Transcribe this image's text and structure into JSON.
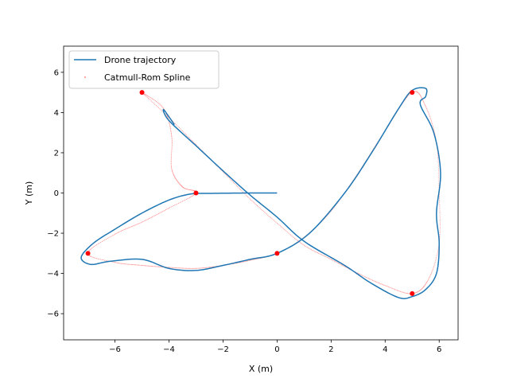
{
  "chart_data": {
    "type": "line",
    "title": "",
    "xlabel": "X (m)",
    "ylabel": "Y (m)",
    "xlim": [
      -7.9,
      6.7
    ],
    "ylim": [
      -7.3,
      7.3
    ],
    "xticks": [
      -6,
      -4,
      -2,
      0,
      2,
      4,
      6
    ],
    "yticks": [
      -6,
      -4,
      -2,
      0,
      2,
      4,
      6
    ],
    "grid": false,
    "legend_position": "upper-left",
    "series": [
      {
        "name": "Drone trajectory",
        "color": "#1f77b4",
        "style": "solid-line",
        "points": [
          [
            0,
            0
          ],
          [
            -1,
            0
          ],
          [
            -2.5,
            -0.02
          ],
          [
            -3.2,
            -0.05
          ],
          [
            -4,
            -0.35
          ],
          [
            -5,
            -1
          ],
          [
            -6,
            -1.8
          ],
          [
            -6.8,
            -2.5
          ],
          [
            -7.25,
            -3.2
          ],
          [
            -6.9,
            -3.55
          ],
          [
            -6.2,
            -3.4
          ],
          [
            -5,
            -3.3
          ],
          [
            -4,
            -3.75
          ],
          [
            -3,
            -3.85
          ],
          [
            -2,
            -3.6
          ],
          [
            -1,
            -3.3
          ],
          [
            0,
            -3.0
          ],
          [
            1.2,
            -2.0
          ],
          [
            2.5,
            0.0
          ],
          [
            3.5,
            2.0
          ],
          [
            4.5,
            4.2
          ],
          [
            5,
            5.1
          ],
          [
            5.5,
            5.2
          ],
          [
            5.5,
            4.8
          ],
          [
            5.3,
            4.4
          ],
          [
            5.8,
            3
          ],
          [
            6.05,
            1
          ],
          [
            5.9,
            -1
          ],
          [
            6,
            -2.5
          ],
          [
            5.9,
            -4
          ],
          [
            5.5,
            -4.8
          ],
          [
            5,
            -5.15
          ],
          [
            4.5,
            -5.2
          ],
          [
            3.5,
            -4.5
          ],
          [
            2.5,
            -3.6
          ],
          [
            1,
            -2.4
          ],
          [
            0,
            -1.2
          ],
          [
            -1,
            -0.1
          ],
          [
            -2,
            1.1
          ],
          [
            -3,
            2.35
          ],
          [
            -4,
            3.6
          ],
          [
            -4.2,
            4.15
          ],
          [
            -3.8,
            3.4
          ]
        ]
      },
      {
        "name": "Catmull-Rom Spline",
        "color": "#ff6666",
        "style": "dotted-markers",
        "points": [
          [
            -5,
            5
          ],
          [
            -4.2,
            4.2
          ],
          [
            -3.9,
            2.8
          ],
          [
            -3.9,
            1.2
          ],
          [
            -3.5,
            0.3
          ],
          [
            -3,
            0
          ],
          [
            -4,
            -0.75
          ],
          [
            -5,
            -1.45
          ],
          [
            -6,
            -2.05
          ],
          [
            -7,
            -3
          ],
          [
            -6,
            -3.45
          ],
          [
            -5,
            -3.6
          ],
          [
            -4,
            -3.7
          ],
          [
            -3,
            -3.75
          ],
          [
            -2,
            -3.6
          ],
          [
            -1,
            -3.35
          ],
          [
            0,
            -3
          ],
          [
            1,
            -2.2
          ],
          [
            2,
            -0.9
          ],
          [
            3,
            1.0
          ],
          [
            4,
            3.1
          ],
          [
            5,
            5
          ],
          [
            5.5,
            4.3
          ],
          [
            5.9,
            2.5
          ],
          [
            6,
            0
          ],
          [
            6,
            -2.5
          ],
          [
            5.6,
            -4.3
          ],
          [
            5,
            -5
          ],
          [
            4,
            -4.6
          ],
          [
            3,
            -4.0
          ],
          [
            2,
            -3.3
          ],
          [
            1,
            -2.6
          ],
          [
            0,
            -1.5
          ],
          [
            -1,
            -0.3
          ],
          [
            -2,
            1.05
          ],
          [
            -3,
            2.4
          ],
          [
            -4,
            3.75
          ],
          [
            -5,
            5
          ]
        ]
      },
      {
        "name": "",
        "color": "#ff0000",
        "style": "markers",
        "points": [
          [
            -5,
            5
          ],
          [
            -3,
            0
          ],
          [
            -7,
            -3
          ],
          [
            0,
            -3
          ],
          [
            5,
            5
          ],
          [
            5,
            -5
          ]
        ]
      }
    ]
  }
}
